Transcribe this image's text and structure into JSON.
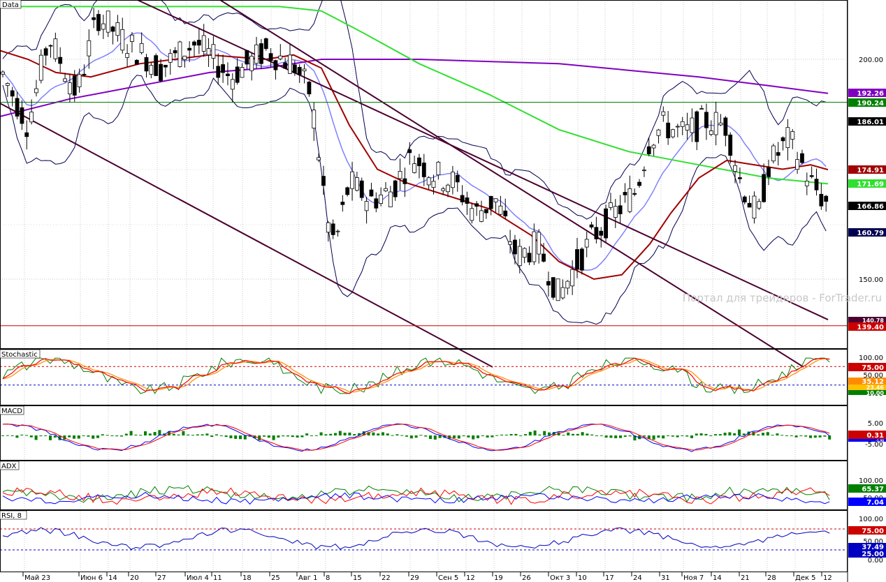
{
  "watermark": "Портал для трейдеров - ForTrader.ru",
  "panels": {
    "price": {
      "label": "Data",
      "ticks": [
        "200.00",
        "150.00"
      ]
    },
    "stoch": {
      "label": "Stochastic",
      "ticks": [
        "100.00",
        "50.00",
        "0.00"
      ]
    },
    "macd": {
      "label": "MACD",
      "ticks": [
        "5.00",
        "-5.00"
      ]
    },
    "adx": {
      "label": "ADX",
      "ticks": [
        "100.00",
        "50.00"
      ]
    },
    "rsi": {
      "label": "RSI, 8",
      "ticks": [
        "100.00",
        "50.00",
        "0.00"
      ]
    }
  },
  "badges": {
    "b1": "192.26",
    "b2": "190.24",
    "b3": "186.01",
    "b4": "174.91",
    "b5": "171.69",
    "b6": "166.86",
    "b7": "160.79",
    "b8": "140.78",
    "b9": "139.40",
    "s1": "75.00",
    "s2": "35.12",
    "s3": "23.46",
    "s4": "10.00",
    "m1": "0.31",
    "m2": "-1.00",
    "a1": "65.37",
    "a2": "7.04",
    "r1": "75.00",
    "r2": "37.49",
    "r3": "25.00"
  },
  "xaxis": [
    "Май 23",
    "Июн 6",
    "14",
    "20",
    "27",
    "Июл 4",
    "11",
    "18",
    "25",
    "Авг 1",
    "8",
    "15",
    "22",
    "29",
    "Сен 5",
    "12",
    "19",
    "26",
    "Окт 3",
    "10",
    "17",
    "24",
    "31",
    "Ноя 7",
    "14",
    "21",
    "28",
    "Дек 5",
    "12"
  ],
  "colors": {
    "bull": "#ffffff",
    "bear": "#000000",
    "bands": "#000050",
    "sma20": "#8080ff",
    "ma_red": "#a00000",
    "ma_green": "#30e030",
    "ma_purple": "#8000c0",
    "channel": "#4b0030",
    "hline_green": "#008000",
    "hline_red": "#cc0000",
    "stoch_k": "#008000",
    "stoch_d": "#ff0000",
    "stoch_s": "#ff8c00",
    "macd_hist": "#008000",
    "macd_line": "#0000ff",
    "macd_signal": "#ff0000",
    "adx_pos": "#008000",
    "adx_neg": "#ff0000",
    "adx_line": "#0000ff",
    "rsi": "#0000c0"
  },
  "chart_data": {
    "type": "candlestick",
    "instrument_label": "Data",
    "x_dates": [
      "Май 23",
      "Июн 6",
      "14",
      "20",
      "27",
      "Июл 4",
      "11",
      "18",
      "25",
      "Авг 1",
      "8",
      "15",
      "22",
      "29",
      "Сен 5",
      "12",
      "19",
      "26",
      "Окт 3",
      "10",
      "17",
      "24",
      "31",
      "Ноя 7",
      "14",
      "21",
      "28",
      "Дек 5",
      "12"
    ],
    "price_close_path": [
      [
        0,
        198
      ],
      [
        40,
        185
      ],
      [
        70,
        205
      ],
      [
        110,
        192
      ],
      [
        140,
        210
      ],
      [
        180,
        204
      ],
      [
        230,
        198
      ],
      [
        280,
        204
      ],
      [
        330,
        196
      ],
      [
        380,
        202
      ],
      [
        420,
        199
      ],
      [
        445,
        192
      ],
      [
        470,
        162
      ],
      [
        480,
        158
      ],
      [
        500,
        172
      ],
      [
        530,
        168
      ],
      [
        560,
        170
      ],
      [
        590,
        178
      ],
      [
        620,
        174
      ],
      [
        650,
        172
      ],
      [
        680,
        165
      ],
      [
        710,
        168
      ],
      [
        740,
        155
      ],
      [
        770,
        158
      ],
      [
        800,
        146
      ],
      [
        820,
        152
      ],
      [
        850,
        160
      ],
      [
        880,
        165
      ],
      [
        910,
        170
      ],
      [
        930,
        182
      ],
      [
        950,
        185
      ],
      [
        980,
        183
      ],
      [
        1010,
        186
      ],
      [
        1040,
        185
      ],
      [
        1060,
        172
      ],
      [
        1085,
        164
      ],
      [
        1100,
        176
      ],
      [
        1130,
        182
      ],
      [
        1160,
        172
      ],
      [
        1185,
        166.86
      ]
    ],
    "price_axis": {
      "ticks": [
        200,
        150
      ],
      "ylim": [
        129.5,
        214
      ]
    },
    "ma_red_path": [
      [
        0,
        202
      ],
      [
        40,
        200
      ],
      [
        80,
        197
      ],
      [
        130,
        196
      ],
      [
        200,
        199
      ],
      [
        300,
        201
      ],
      [
        380,
        200
      ],
      [
        420,
        201
      ],
      [
        460,
        198
      ],
      [
        500,
        185
      ],
      [
        540,
        175
      ],
      [
        580,
        172
      ],
      [
        620,
        170
      ],
      [
        700,
        166
      ],
      [
        760,
        160
      ],
      [
        800,
        154
      ],
      [
        850,
        150
      ],
      [
        890,
        151
      ],
      [
        930,
        158
      ],
      [
        960,
        165
      ],
      [
        1000,
        173
      ],
      [
        1040,
        177
      ],
      [
        1080,
        176
      ],
      [
        1120,
        175
      ],
      [
        1160,
        176
      ],
      [
        1185,
        174.91
      ]
    ],
    "ma_green_path": [
      [
        0,
        212
      ],
      [
        200,
        212
      ],
      [
        400,
        212
      ],
      [
        460,
        211
      ],
      [
        520,
        206
      ],
      [
        600,
        199
      ],
      [
        700,
        192
      ],
      [
        800,
        184
      ],
      [
        900,
        179
      ],
      [
        1000,
        176
      ],
      [
        1100,
        173
      ],
      [
        1185,
        171.69
      ]
    ],
    "ma_purple_path": [
      [
        0,
        187
      ],
      [
        100,
        191
      ],
      [
        200,
        194
      ],
      [
        300,
        197
      ],
      [
        380,
        198
      ],
      [
        460,
        200
      ],
      [
        600,
        200
      ],
      [
        800,
        199
      ],
      [
        1000,
        196
      ],
      [
        1100,
        194
      ],
      [
        1185,
        192.26
      ]
    ],
    "channel_lines": [
      {
        "from": [
          0,
          190
        ],
        "to": [
          705,
          130
        ]
      },
      {
        "from": [
          190,
          214
        ],
        "to": [
          1185,
          140.78
        ]
      },
      {
        "from": [
          310,
          214
        ],
        "to": [
          1150,
          130
        ]
      }
    ],
    "levels": [
      {
        "value": 190.24,
        "color": "green"
      },
      {
        "value": 139.4,
        "color": "red"
      }
    ],
    "price_markers": [
      192.26,
      190.24,
      186.01,
      174.91,
      171.69,
      166.86,
      160.79,
      140.78,
      139.4
    ],
    "stochastic": {
      "levels": [
        75,
        25
      ],
      "last": [
        35.12,
        23.46,
        10.0
      ]
    },
    "macd": {
      "last_signal": 0.31,
      "last_line": -1.0
    },
    "adx": {
      "last": [
        65.37,
        7.04
      ]
    },
    "rsi": {
      "period": 8,
      "levels": [
        75,
        25
      ],
      "last": 37.49
    }
  }
}
